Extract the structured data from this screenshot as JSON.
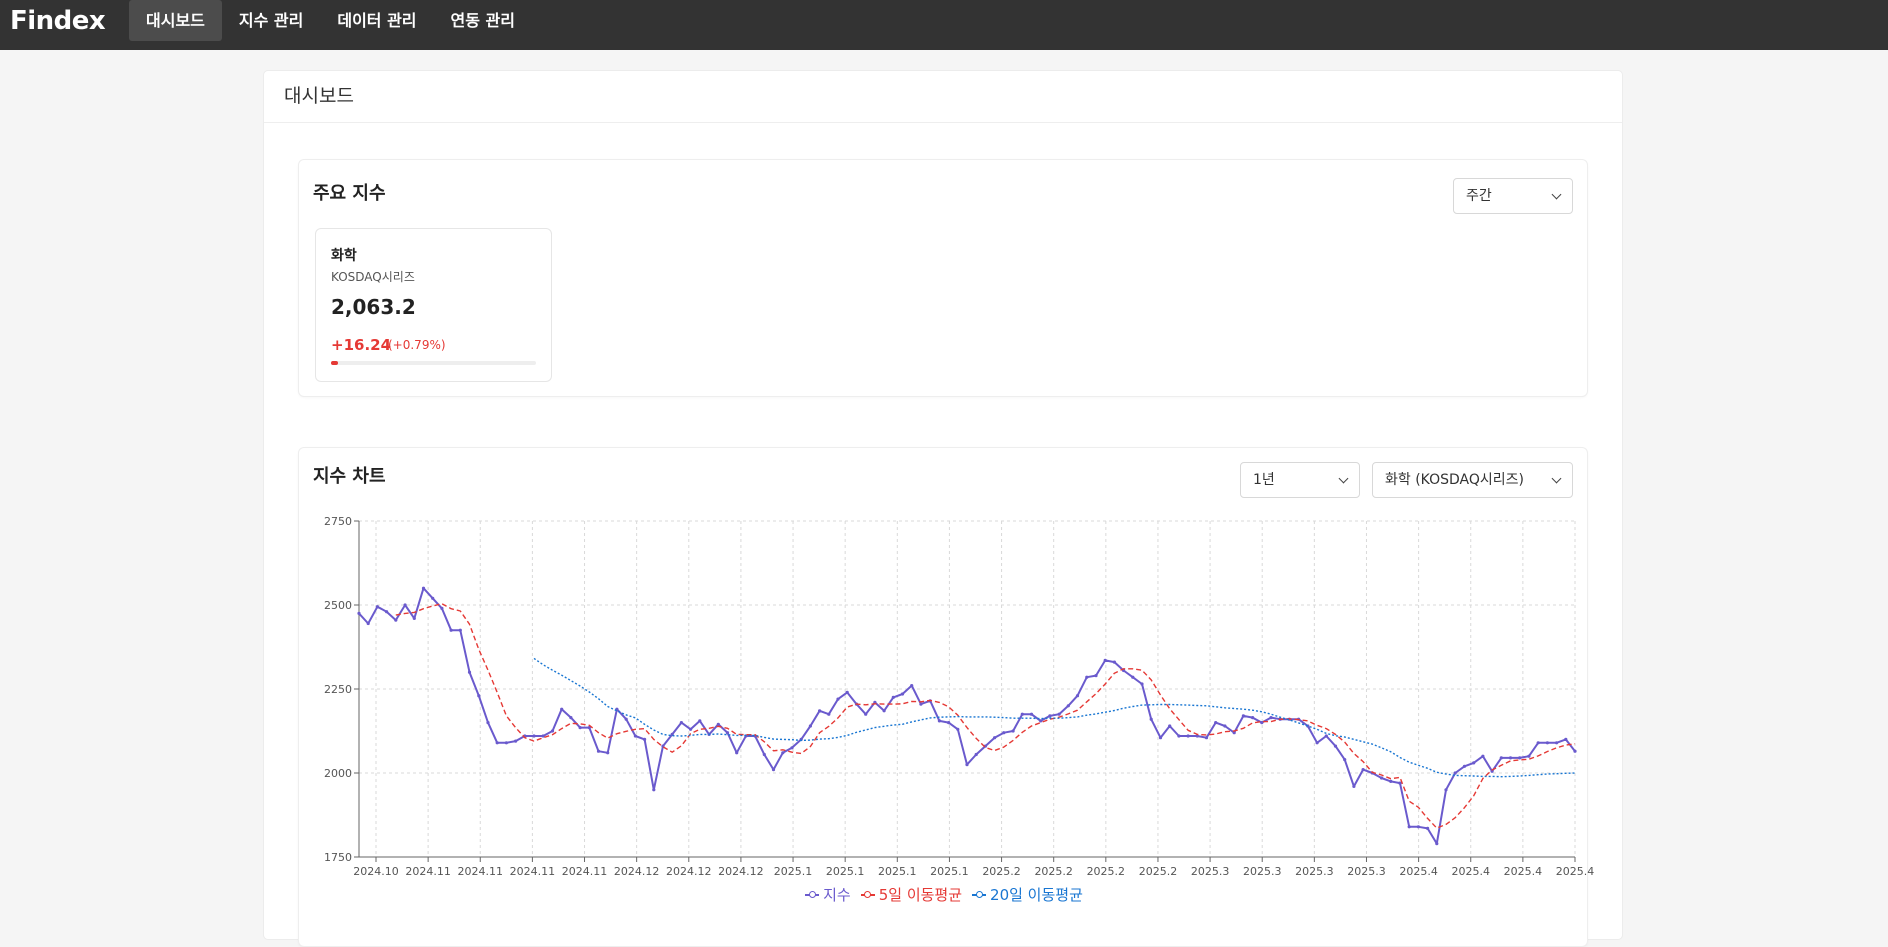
{
  "brand": "Findex",
  "nav": [
    {
      "label": "대시보드",
      "active": true
    },
    {
      "label": "지수 관리",
      "active": false
    },
    {
      "label": "데이터 관리",
      "active": false
    },
    {
      "label": "연동 관리",
      "active": false
    }
  ],
  "page_title": "대시보드",
  "main_indices": {
    "title": "주요 지수",
    "period_select": "주간",
    "cards": [
      {
        "name": "화학",
        "series": "KOSDAQ시리즈",
        "value": "2,063.2",
        "change": "+16.24",
        "rate": "(+0.79%)",
        "bar_fraction": 0.0079
      }
    ]
  },
  "index_chart": {
    "title": "지수 차트",
    "range_select": "1년",
    "index_select": "화학 (KOSDAQ시리즈)"
  },
  "colors": {
    "index": "#6a5acd",
    "ma5": "#e53935",
    "ma20": "#1976d2",
    "up": "#e53935"
  },
  "chart_data": {
    "type": "line",
    "y_ticks": [
      1750,
      2000,
      2250,
      2500,
      2750
    ],
    "ylim": [
      1750,
      2750
    ],
    "x_tick_labels": [
      "2024.10",
      "2024.11",
      "2024.11",
      "2024.11",
      "2024.11",
      "2024.12",
      "2024.12",
      "2024.12",
      "2025.1",
      "2025.1",
      "2025.1",
      "2025.1",
      "2025.2",
      "2025.2",
      "2025.2",
      "2025.2",
      "2025.3",
      "2025.3",
      "2025.3",
      "2025.3",
      "2025.4",
      "2025.4",
      "2025.4",
      "2025.4"
    ],
    "grid": true,
    "legend_position": "bottom",
    "series": [
      {
        "name": "지수",
        "color": "#6a5acd",
        "style": "solid",
        "values": [
          2475,
          2445,
          2495,
          2480,
          2455,
          2500,
          2460,
          2550,
          2520,
          2490,
          2425,
          2425,
          2300,
          2230,
          2150,
          2090,
          2090,
          2095,
          2110,
          2110,
          2110,
          2125,
          2190,
          2165,
          2135,
          2135,
          2065,
          2060,
          2190,
          2160,
          2110,
          2100,
          1950,
          2080,
          2115,
          2150,
          2130,
          2155,
          2115,
          2145,
          2120,
          2060,
          2110,
          2110,
          2055,
          2010,
          2060,
          2075,
          2100,
          2140,
          2185,
          2175,
          2220,
          2240,
          2205,
          2175,
          2210,
          2185,
          2225,
          2235,
          2260,
          2205,
          2215,
          2155,
          2150,
          2130,
          2025,
          2055,
          2080,
          2105,
          2120,
          2125,
          2175,
          2175,
          2155,
          2170,
          2175,
          2200,
          2230,
          2285,
          2290,
          2335,
          2330,
          2305,
          2285,
          2265,
          2160,
          2105,
          2140,
          2110,
          2110,
          2110,
          2105,
          2150,
          2140,
          2120,
          2170,
          2165,
          2150,
          2165,
          2160,
          2160,
          2160,
          2140,
          2090,
          2110,
          2080,
          2040,
          1960,
          2010,
          2000,
          1985,
          1975,
          1970,
          1840,
          1840,
          1835,
          1790,
          1950,
          2000,
          2020,
          2030,
          2050,
          2005,
          2045,
          2045,
          2045,
          2050,
          2090,
          2090,
          2090,
          2100,
          2065
        ]
      },
      {
        "name": "5일 이동평균",
        "color": "#e53935",
        "style": "dashed",
        "values": [
          null,
          null,
          null,
          null,
          2470,
          2475,
          2478,
          2489,
          2497,
          2504,
          2489,
          2482,
          2443,
          2368,
          2306,
          2240,
          2170,
          2135,
          2105,
          2095,
          2105,
          2114,
          2132,
          2148,
          2146,
          2142,
          2120,
          2104,
          2117,
          2124,
          2130,
          2132,
          2100,
          2078,
          2062,
          2081,
          2117,
          2130,
          2133,
          2139,
          2133,
          2115,
          2114,
          2114,
          2093,
          2066,
          2069,
          2062,
          2058,
          2079,
          2120,
          2139,
          2164,
          2196,
          2205,
          2203,
          2206,
          2205,
          2205,
          2206,
          2213,
          2212,
          2216,
          2210,
          2197,
          2172,
          2135,
          2103,
          2076,
          2067,
          2077,
          2097,
          2121,
          2140,
          2150,
          2160,
          2166,
          2176,
          2187,
          2212,
          2236,
          2265,
          2297,
          2310,
          2310,
          2306,
          2277,
          2232,
          2191,
          2159,
          2127,
          2115,
          2113,
          2116,
          2123,
          2125,
          2133,
          2149,
          2153,
          2153,
          2160,
          2161,
          2159,
          2155,
          2142,
          2132,
          2115,
          2092,
          2058,
          2034,
          2002,
          1994,
          1983,
          1987,
          1916,
          1898,
          1865,
          1836,
          1847,
          1867,
          1897,
          1932,
          1984,
          2009,
          2023,
          2036,
          2039,
          2041,
          2051,
          2064,
          2075,
          2083,
          2087
        ]
      },
      {
        "name": "20일 이동평균",
        "color": "#1976d2",
        "style": "dotted",
        "values": [
          null,
          null,
          null,
          null,
          null,
          null,
          null,
          null,
          null,
          null,
          null,
          null,
          null,
          null,
          null,
          null,
          null,
          null,
          null,
          2341,
          2322,
          2306,
          2291,
          2275,
          2259,
          2241,
          2221,
          2198,
          2185,
          2173,
          2164,
          2145,
          2128,
          2115,
          2111,
          2110,
          2112,
          2115,
          2115,
          2116,
          2114,
          2112,
          2112,
          2112,
          2106,
          2101,
          2100,
          2099,
          2097,
          2098,
          2101,
          2102,
          2106,
          2112,
          2121,
          2128,
          2135,
          2139,
          2143,
          2145,
          2152,
          2158,
          2164,
          2166,
          2167,
          2168,
          2167,
          2167,
          2167,
          2166,
          2165,
          2163,
          2163,
          2163,
          2162,
          2163,
          2163,
          2165,
          2167,
          2172,
          2176,
          2181,
          2186,
          2193,
          2198,
          2202,
          2203,
          2204,
          2204,
          2203,
          2202,
          2201,
          2200,
          2197,
          2194,
          2192,
          2190,
          2187,
          2182,
          2175,
          2166,
          2158,
          2149,
          2140,
          2130,
          2118,
          2111,
          2107,
          2100,
          2093,
          2086,
          2075,
          2063,
          2046,
          2032,
          2023,
          2014,
          2002,
          1997,
          1993,
          1992,
          1991,
          1990,
          1990,
          1989,
          1990,
          1991,
          1993,
          1995,
          1997,
          1998,
          1999,
          2000
        ]
      }
    ]
  }
}
